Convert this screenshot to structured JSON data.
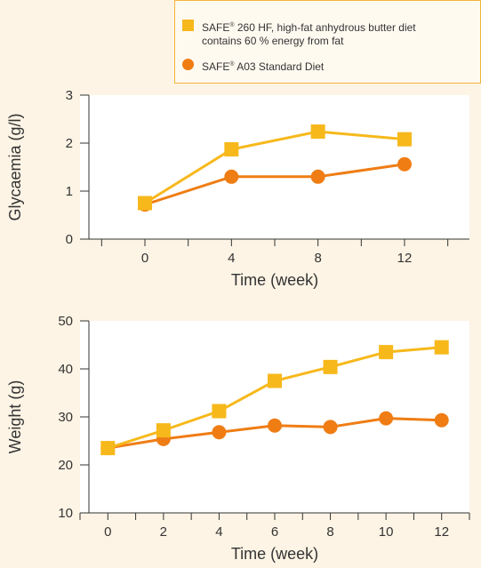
{
  "legend": {
    "items": [
      {
        "marker": "square",
        "color": "#f7b81b",
        "brand": "SAFE",
        "reg": "®",
        "rest_line1": " 260 HF, high-fat anhydrous butter diet",
        "line2": "contains 60 % energy from fat"
      },
      {
        "marker": "circle",
        "color": "#ef7d14",
        "brand": "SAFE",
        "reg": "®",
        "rest_line1": " A03 Standard Diet",
        "line2": ""
      }
    ]
  },
  "chart_data": [
    {
      "type": "line",
      "xlabel": "Time (week)",
      "ylabel": "Glycaemia (g/l)",
      "x_ticks": [
        0,
        4,
        8,
        12
      ],
      "y_ticks": [
        0,
        1,
        2,
        3
      ],
      "xlim": [
        -3,
        15
      ],
      "ylim": [
        0,
        3
      ],
      "grid": false,
      "legend_position": "top-right",
      "series": [
        {
          "name": "SAFE® 260 HF, high-fat anhydrous butter diet contains 60 % energy from fat",
          "marker": "square",
          "color": "#f7b81b",
          "x": [
            0,
            4,
            8,
            12
          ],
          "y": [
            0.75,
            1.87,
            2.24,
            2.08
          ]
        },
        {
          "name": "SAFE® A03 Standard Diet",
          "marker": "circle",
          "color": "#ef7d14",
          "x": [
            0,
            4,
            8,
            12
          ],
          "y": [
            0.72,
            1.3,
            1.3,
            1.56
          ]
        }
      ]
    },
    {
      "type": "line",
      "xlabel": "Time (week)",
      "ylabel": "Weight (g)",
      "x_ticks": [
        0,
        2,
        4,
        6,
        8,
        10,
        12
      ],
      "y_ticks": [
        10,
        20,
        30,
        40,
        50
      ],
      "xlim": [
        -1,
        13
      ],
      "ylim": [
        10,
        50
      ],
      "grid": false,
      "series": [
        {
          "name": "SAFE® 260 HF, high-fat anhydrous butter diet contains 60 % energy from fat",
          "marker": "square",
          "color": "#f7b81b",
          "x": [
            0,
            2,
            4,
            6,
            8,
            10,
            12
          ],
          "y": [
            23.5,
            27.2,
            31.2,
            37.5,
            40.4,
            43.5,
            44.5
          ]
        },
        {
          "name": "SAFE® A03 Standard Diet",
          "marker": "circle",
          "color": "#ef7d14",
          "x": [
            0,
            2,
            4,
            6,
            8,
            10,
            12
          ],
          "y": [
            23.5,
            25.4,
            26.8,
            28.2,
            27.9,
            29.7,
            29.3
          ]
        }
      ]
    }
  ]
}
